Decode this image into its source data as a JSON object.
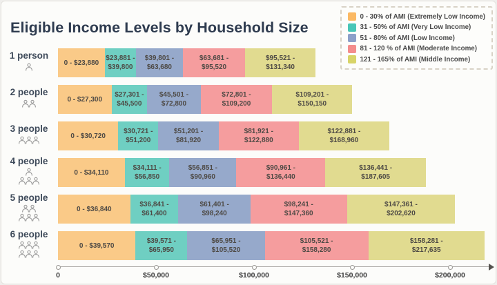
{
  "title": "Eligible Income Levels by Household Size",
  "legend": {
    "items": [
      {
        "label": "0 - 30% of AMI (Extremely Low Income)",
        "color": "#FBB964"
      },
      {
        "label": "31 - 50% of AMI (Very Low Income)",
        "color": "#49C6B7"
      },
      {
        "label": "51 - 80% of AMI (Low Income)",
        "color": "#8CA0C9"
      },
      {
        "label": "81 - 120 % of AMI (Moderate Income)",
        "color": "#F48D8C"
      },
      {
        "label": "121 - 165% of AMI (Middle Income)",
        "color": "#D8D468"
      }
    ]
  },
  "chart_data": {
    "type": "bar",
    "orientation": "horizontal",
    "stacked": true,
    "title": "Eligible Income Levels by Household Size",
    "xlabel": "",
    "ylabel": "",
    "xlim": [
      0,
      222000
    ],
    "grid": false,
    "legend_position": "top-right",
    "series_names": [
      "0 - 30% of AMI (Extremely Low Income)",
      "31 - 50% of AMI (Very Low Income)",
      "51 - 80% of AMI (Low Income)",
      "81 - 120 % of AMI (Moderate Income)",
      "121 - 165% of AMI (Middle Income)"
    ],
    "bar_colors": [
      "#FACA88",
      "#6FCFC2",
      "#96A9CB",
      "#F59D9E",
      "#E1DB90"
    ],
    "x_ticks": [
      {
        "label": "0",
        "value": 0
      },
      {
        "label": "$50,000",
        "value": 50000
      },
      {
        "label": "$100,000",
        "value": 100000
      },
      {
        "label": "$150,000",
        "value": 150000
      },
      {
        "label": "$200,000",
        "value": 200000
      }
    ],
    "rows": [
      {
        "label": "1 person",
        "persons": 1,
        "segments": [
          {
            "label": "0 - $23,880",
            "from": 0,
            "to": 23880
          },
          {
            "label": "$23,881 - $39,800",
            "from": 23880,
            "to": 39800
          },
          {
            "label": "$39,801 - $63,680",
            "from": 39800,
            "to": 63680
          },
          {
            "label": "$63,681 - $95,520",
            "from": 63680,
            "to": 95520
          },
          {
            "label": "$95,521 - $131,340",
            "from": 95520,
            "to": 131340
          }
        ]
      },
      {
        "label": "2 people",
        "persons": 2,
        "segments": [
          {
            "label": "0 - $27,300",
            "from": 0,
            "to": 27300
          },
          {
            "label": "$27,301 - $45,500",
            "from": 27300,
            "to": 45500
          },
          {
            "label": "$45,501 - $72,800",
            "from": 45500,
            "to": 72800
          },
          {
            "label": "$72,801 - $109,200",
            "from": 72800,
            "to": 109200
          },
          {
            "label": "$109,201 - $150,150",
            "from": 109200,
            "to": 150150
          }
        ]
      },
      {
        "label": "3 people",
        "persons": 3,
        "segments": [
          {
            "label": "0 - $30,720",
            "from": 0,
            "to": 30720
          },
          {
            "label": "$30,721 - $51,200",
            "from": 30720,
            "to": 51200
          },
          {
            "label": "$51,201 - $81,920",
            "from": 51200,
            "to": 81920
          },
          {
            "label": "$81,921 - $122,880",
            "from": 81920,
            "to": 122880
          },
          {
            "label": "$122,881 - $168,960",
            "from": 122880,
            "to": 168960
          }
        ]
      },
      {
        "label": "4 people",
        "persons": 4,
        "segments": [
          {
            "label": "0 - $34,110",
            "from": 0,
            "to": 34110
          },
          {
            "label": "$34,111 - $56,850",
            "from": 34110,
            "to": 56850
          },
          {
            "label": "$56,851 - $90,960",
            "from": 56850,
            "to": 90960
          },
          {
            "label": "$90,961 - $136,440",
            "from": 90960,
            "to": 136440
          },
          {
            "label": "$136,441 - $187,605",
            "from": 136440,
            "to": 187605
          }
        ]
      },
      {
        "label": "5 people",
        "persons": 5,
        "segments": [
          {
            "label": "0 - $36,840",
            "from": 0,
            "to": 36840
          },
          {
            "label": "$36,841 - $61,400",
            "from": 36840,
            "to": 61400
          },
          {
            "label": "$61,401 - $98,240",
            "from": 61400,
            "to": 98240
          },
          {
            "label": "$98,241 - $147,360",
            "from": 98240,
            "to": 147360
          },
          {
            "label": "$147,361 - $202,620",
            "from": 147360,
            "to": 202620
          }
        ]
      },
      {
        "label": "6 people",
        "persons": 6,
        "segments": [
          {
            "label": "0 - $39,570",
            "from": 0,
            "to": 39570
          },
          {
            "label": "$39,571 - $65,950",
            "from": 39570,
            "to": 65950
          },
          {
            "label": "$65,951 - $105,520",
            "from": 65950,
            "to": 105520
          },
          {
            "label": "$105,521 - $158,280",
            "from": 105520,
            "to": 158280
          },
          {
            "label": "$158,281 - $217,635",
            "from": 158280,
            "to": 217635
          }
        ]
      }
    ]
  }
}
